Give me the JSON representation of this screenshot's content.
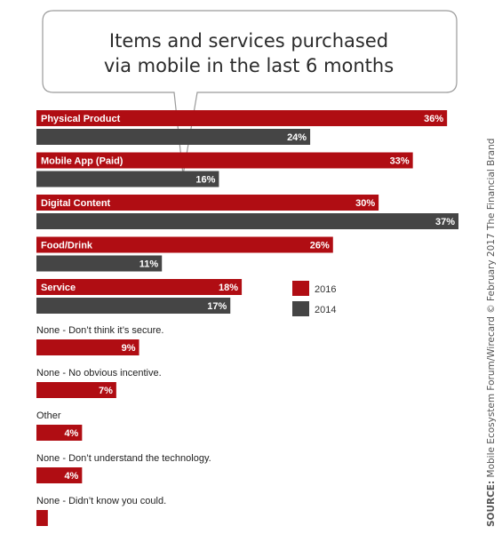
{
  "title_lines": [
    "Items and services purchased",
    "via mobile in the last 6 months"
  ],
  "source_bold": "SOURCE:",
  "source_rest": " Mobile Ecosystem Forum/Wirecard © February 2017 The Financial Brand",
  "colors": {
    "series_2016": "#b00d13",
    "series_2014": "#454545",
    "bubble_border": "#9a9a9a"
  },
  "chart_data": {
    "type": "bar",
    "orientation": "horizontal",
    "categories": [
      "Physical Product",
      "Mobile App (Paid)",
      "Digital Content",
      "Food/Drink",
      "Service",
      "None - Don’t think it’s secure.",
      "None - No obvious incentive.",
      "Other",
      "None - Don’t understand the technology.",
      "None - Didn’t know you could."
    ],
    "series": [
      {
        "name": "2016",
        "values": [
          36,
          33,
          30,
          26,
          18,
          9,
          7,
          4,
          4,
          1
        ]
      },
      {
        "name": "2014",
        "values": [
          24,
          16,
          37,
          11,
          17,
          null,
          null,
          null,
          null,
          null
        ]
      }
    ],
    "value_suffix": "%",
    "xlim": [
      0,
      37
    ],
    "legend_position": "right",
    "grid": false
  }
}
